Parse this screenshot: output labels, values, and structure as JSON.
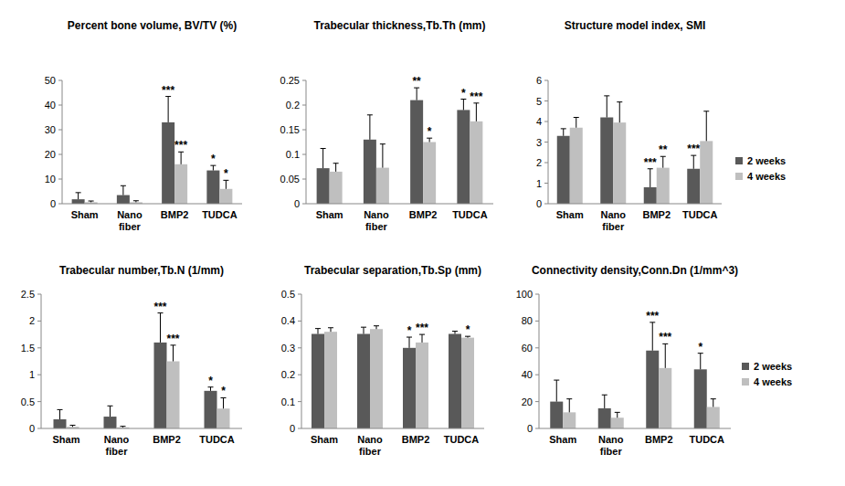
{
  "chart_data": [
    {
      "type": "bar",
      "title": "Percent bone volume, BV/TV (%)",
      "categories": [
        "Sham",
        "Nano fiber",
        "BMP2",
        "TUDCA"
      ],
      "series": [
        {
          "name": "2 weeks",
          "color": "#595959",
          "values": [
            1.8,
            3.5,
            33,
            13.5
          ],
          "errors": [
            2.7,
            3.8,
            10.5,
            2
          ],
          "significance": [
            null,
            null,
            "***",
            "*"
          ]
        },
        {
          "name": "4 weeks",
          "color": "#bfbfbf",
          "values": [
            0.6,
            0.6,
            16,
            6
          ],
          "errors": [
            0.5,
            0.6,
            5,
            3.5
          ],
          "significance": [
            null,
            null,
            "***",
            "*"
          ]
        }
      ],
      "ylim": [
        0,
        50
      ],
      "yticks": [
        0,
        10,
        20,
        30,
        40,
        50
      ],
      "grid": false
    },
    {
      "type": "bar",
      "title": "Trabecular thickness,Tb.Th (mm)",
      "categories": [
        "Sham",
        "Nano fiber",
        "BMP2",
        "TUDCA"
      ],
      "series": [
        {
          "name": "2 weeks",
          "color": "#595959",
          "values": [
            0.072,
            0.13,
            0.21,
            0.19
          ],
          "errors": [
            0.04,
            0.05,
            0.025,
            0.022
          ],
          "significance": [
            null,
            null,
            "**",
            "*"
          ]
        },
        {
          "name": "4 weeks",
          "color": "#bfbfbf",
          "values": [
            0.065,
            0.073,
            0.125,
            0.167
          ],
          "errors": [
            0.017,
            0.048,
            0.008,
            0.037
          ],
          "significance": [
            null,
            null,
            "*",
            "***"
          ]
        }
      ],
      "ylim": [
        0,
        0.25
      ],
      "yticks": [
        0,
        0.05,
        0.1,
        0.15,
        0.2,
        0.25
      ],
      "grid": false
    },
    {
      "type": "bar",
      "title": "Structure model index, SMI",
      "categories": [
        "Sham",
        "Nano fiber",
        "BMP2",
        "TUDCA"
      ],
      "series": [
        {
          "name": "2 weeks",
          "color": "#595959",
          "values": [
            3.3,
            4.2,
            0.8,
            1.7
          ],
          "errors": [
            0.35,
            1.05,
            0.9,
            0.65
          ],
          "significance": [
            null,
            null,
            "***",
            "***"
          ]
        },
        {
          "name": "4 weeks",
          "color": "#bfbfbf",
          "values": [
            3.7,
            3.95,
            1.75,
            3.05
          ],
          "errors": [
            0.5,
            1.0,
            0.55,
            1.45
          ],
          "significance": [
            null,
            null,
            "**",
            null
          ]
        }
      ],
      "ylim": [
        0,
        6
      ],
      "yticks": [
        0,
        1,
        2,
        3,
        4,
        5,
        6
      ],
      "grid": false,
      "legend": "right"
    },
    {
      "type": "bar",
      "title": "Trabecular number,Tb.N (1/mm)",
      "categories": [
        "Sham",
        "Nano fiber",
        "BMP2",
        "TUDCA"
      ],
      "series": [
        {
          "name": "2 weeks",
          "color": "#595959",
          "values": [
            0.17,
            0.22,
            1.6,
            0.7
          ],
          "errors": [
            0.18,
            0.2,
            0.55,
            0.07
          ],
          "significance": [
            null,
            null,
            "***",
            "*"
          ]
        },
        {
          "name": "4 weeks",
          "color": "#bfbfbf",
          "values": [
            0.03,
            0.02,
            1.25,
            0.37
          ],
          "errors": [
            0.03,
            0.02,
            0.3,
            0.2
          ],
          "significance": [
            null,
            null,
            "***",
            "*"
          ]
        }
      ],
      "ylim": [
        0,
        2.5
      ],
      "yticks": [
        0,
        0.5,
        1,
        1.5,
        2,
        2.5
      ],
      "grid": false
    },
    {
      "type": "bar",
      "title": "Trabecular separation,Tb.Sp (mm)",
      "categories": [
        "Sham",
        "Nano fiber",
        "BMP2",
        "TUDCA"
      ],
      "series": [
        {
          "name": "2 weeks",
          "color": "#595959",
          "values": [
            0.352,
            0.352,
            0.3,
            0.352
          ],
          "errors": [
            0.02,
            0.025,
            0.04,
            0.01
          ],
          "significance": [
            null,
            null,
            "*",
            null
          ]
        },
        {
          "name": "4 weeks",
          "color": "#bfbfbf",
          "values": [
            0.36,
            0.37,
            0.32,
            0.338
          ],
          "errors": [
            0.015,
            0.012,
            0.03,
            0.005
          ],
          "significance": [
            null,
            null,
            "***",
            "*"
          ]
        }
      ],
      "ylim": [
        0,
        0.5
      ],
      "yticks": [
        0,
        0.1,
        0.2,
        0.3,
        0.4,
        0.5
      ],
      "grid": false
    },
    {
      "type": "bar",
      "title": "Connectivity density,Conn.Dn (1/mm^3)",
      "categories": [
        "Sham",
        "Nano fiber",
        "BMP2",
        "TUDCA"
      ],
      "series": [
        {
          "name": "2 weeks",
          "color": "#595959",
          "values": [
            20,
            15,
            58,
            44
          ],
          "errors": [
            16,
            10,
            21,
            12
          ],
          "significance": [
            null,
            null,
            "***",
            "*"
          ]
        },
        {
          "name": "4 weeks",
          "color": "#bfbfbf",
          "values": [
            12,
            8,
            45,
            16
          ],
          "errors": [
            10,
            4,
            18,
            6
          ],
          "significance": [
            null,
            null,
            "***",
            null
          ]
        }
      ],
      "ylim": [
        0,
        100
      ],
      "yticks": [
        0,
        20,
        40,
        60,
        80,
        100
      ],
      "grid": false,
      "legend": "right"
    }
  ]
}
